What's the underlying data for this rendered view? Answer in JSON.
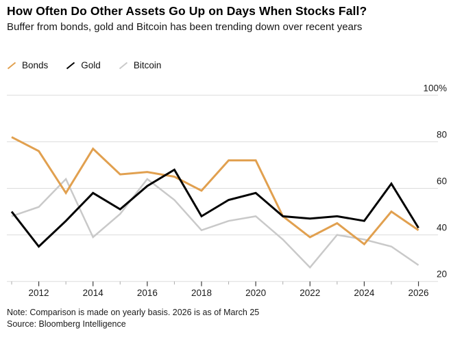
{
  "header": {
    "title": "How Often Do Other Assets Go Up on Days When Stocks Fall?",
    "subtitle": "Buffer from bonds, gold and Bitcoin has been trending down over recent years"
  },
  "footer": {
    "note": "Note: Comparison is made on yearly basis. 2026 is as of March 25",
    "source": "Source: Bloomberg Intelligence"
  },
  "colors": {
    "bonds": "#E1A04F",
    "gold": "#000000",
    "bitcoin": "#C9C9C9",
    "gridline": "#DBDBDB",
    "axis_text": "#1a1a1a",
    "major_tick": "#3c3c3c",
    "minor_tick": "#ababab",
    "background": "#ffffff"
  },
  "chart_data": {
    "type": "line",
    "title": "How Often Do Other Assets Go Up on Days When Stocks Fall?",
    "subtitle": "Buffer from bonds, gold and Bitcoin has been trending down over recent years",
    "unit": "%",
    "x": [
      2011,
      2012,
      2013,
      2014,
      2015,
      2016,
      2017,
      2018,
      2019,
      2020,
      2021,
      2022,
      2023,
      2024,
      2025,
      2026
    ],
    "series": [
      {
        "name": "Bonds",
        "color": "#E1A04F",
        "values": [
          82,
          76,
          58,
          77,
          66,
          67,
          65,
          59,
          72,
          72,
          48,
          39,
          45,
          36,
          50,
          42
        ]
      },
      {
        "name": "Gold",
        "color": "#000000",
        "values": [
          50,
          35,
          46,
          58,
          51,
          61,
          68,
          48,
          55,
          58,
          48,
          47,
          48,
          46,
          62,
          43
        ]
      },
      {
        "name": "Bitcoin",
        "color": "#C9C9C9",
        "values": [
          48,
          52,
          64,
          39,
          49,
          64,
          55,
          42,
          46,
          48,
          38,
          26,
          40,
          38,
          35,
          27
        ]
      }
    ],
    "ylim": [
      20,
      100
    ],
    "y_ticks": [
      100,
      80,
      60,
      40,
      20
    ],
    "y_tick_labels": [
      "100%",
      "80",
      "60",
      "40",
      "20"
    ],
    "x_tick_years": [
      2012,
      2014,
      2016,
      2018,
      2020,
      2022,
      2024,
      2026
    ],
    "x_tick_labels": [
      "2012",
      "2014",
      "2016",
      "2018",
      "2020",
      "2022",
      "2024",
      "2026"
    ],
    "grid": true,
    "legend_position": "top-left",
    "y_axis_side": "right"
  }
}
